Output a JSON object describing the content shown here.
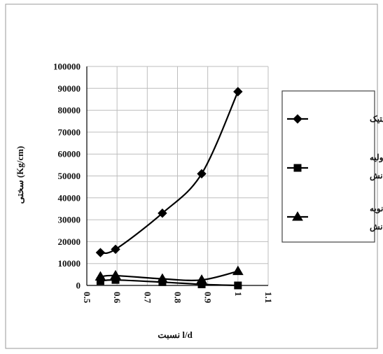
{
  "chart_data": {
    "type": "line",
    "title": "",
    "xlabel": "نسبت l/d",
    "ylabel": "سختی (Kg/cm)",
    "xlim": [
      0.5,
      1.1
    ],
    "ylim": [
      0,
      100000
    ],
    "xticks": [
      "0.5",
      "0.6",
      "0.7",
      "0.8",
      "0.9",
      "1",
      "1.1"
    ],
    "yticks": [
      "0",
      "10000",
      "20000",
      "30000",
      "40000",
      "50000",
      "60000",
      "70000",
      "80000",
      "90000",
      "100000"
    ],
    "grid": true,
    "legend_position": "right",
    "series": [
      {
        "name": "سختی الاستیک",
        "marker": "diamond",
        "x": [
          0.545,
          0.595,
          0.75,
          0.88,
          1.0
        ],
        "y": [
          15000,
          16500,
          33000,
          51000,
          88500
        ]
      },
      {
        "name_lines": [
          "سختی اولیه",
          "پس از کمانش"
        ],
        "marker": "square",
        "x": [
          0.545,
          0.595,
          0.75,
          0.88,
          1.0
        ],
        "y": [
          2000,
          2500,
          1500,
          500,
          0
        ]
      },
      {
        "name_lines": [
          "سختی ثانویه",
          "پس از کمانش"
        ],
        "marker": "triangle",
        "x": [
          0.545,
          0.595,
          0.75,
          0.88,
          1.0
        ],
        "y": [
          4000,
          4500,
          3000,
          2500,
          6500
        ]
      }
    ]
  }
}
